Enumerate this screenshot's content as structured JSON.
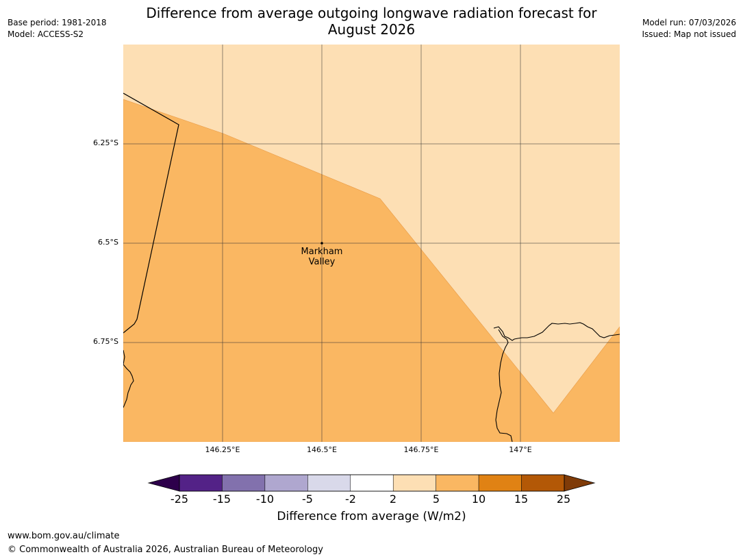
{
  "title": {
    "line1": "Difference from average outgoing longwave radiation forecast for",
    "line2": "August 2026"
  },
  "meta_left": {
    "base_period": "Base period: 1981-2018",
    "model": "Model: ACCESS-S2"
  },
  "meta_right": {
    "model_run": "Model run: 07/03/2026",
    "issued": "Issued: Map not issued"
  },
  "map": {
    "lat_labels": [
      "6.25°S",
      "6.5°S",
      "6.75°S"
    ],
    "lon_labels": [
      "146.25°E",
      "146.5°E",
      "146.75°E",
      "147°E"
    ],
    "place": {
      "name_line1": "Markham",
      "name_line2": "Valley"
    },
    "category_colors": {
      "2_to_5": "#fddfb4",
      "5_to_10": "#fab762"
    }
  },
  "colorbar": {
    "ticks": [
      "-25",
      "-15",
      "-10",
      "-5",
      "-2",
      "2",
      "5",
      "10",
      "15",
      "25"
    ],
    "colors": [
      "#532287",
      "#8271ad",
      "#afa7cf",
      "#d9d9ea",
      "#ffffff",
      "#fddfb4",
      "#fab762",
      "#e08214",
      "#b35806"
    ],
    "under_color": "#2d004b",
    "over_color": "#7f3b08",
    "label": "Difference from average (W/m2)"
  },
  "footer": {
    "url": "www.bom.gov.au/climate",
    "copyright": "© Commonwealth of Australia 2026, Australian Bureau of Meteorology"
  }
}
